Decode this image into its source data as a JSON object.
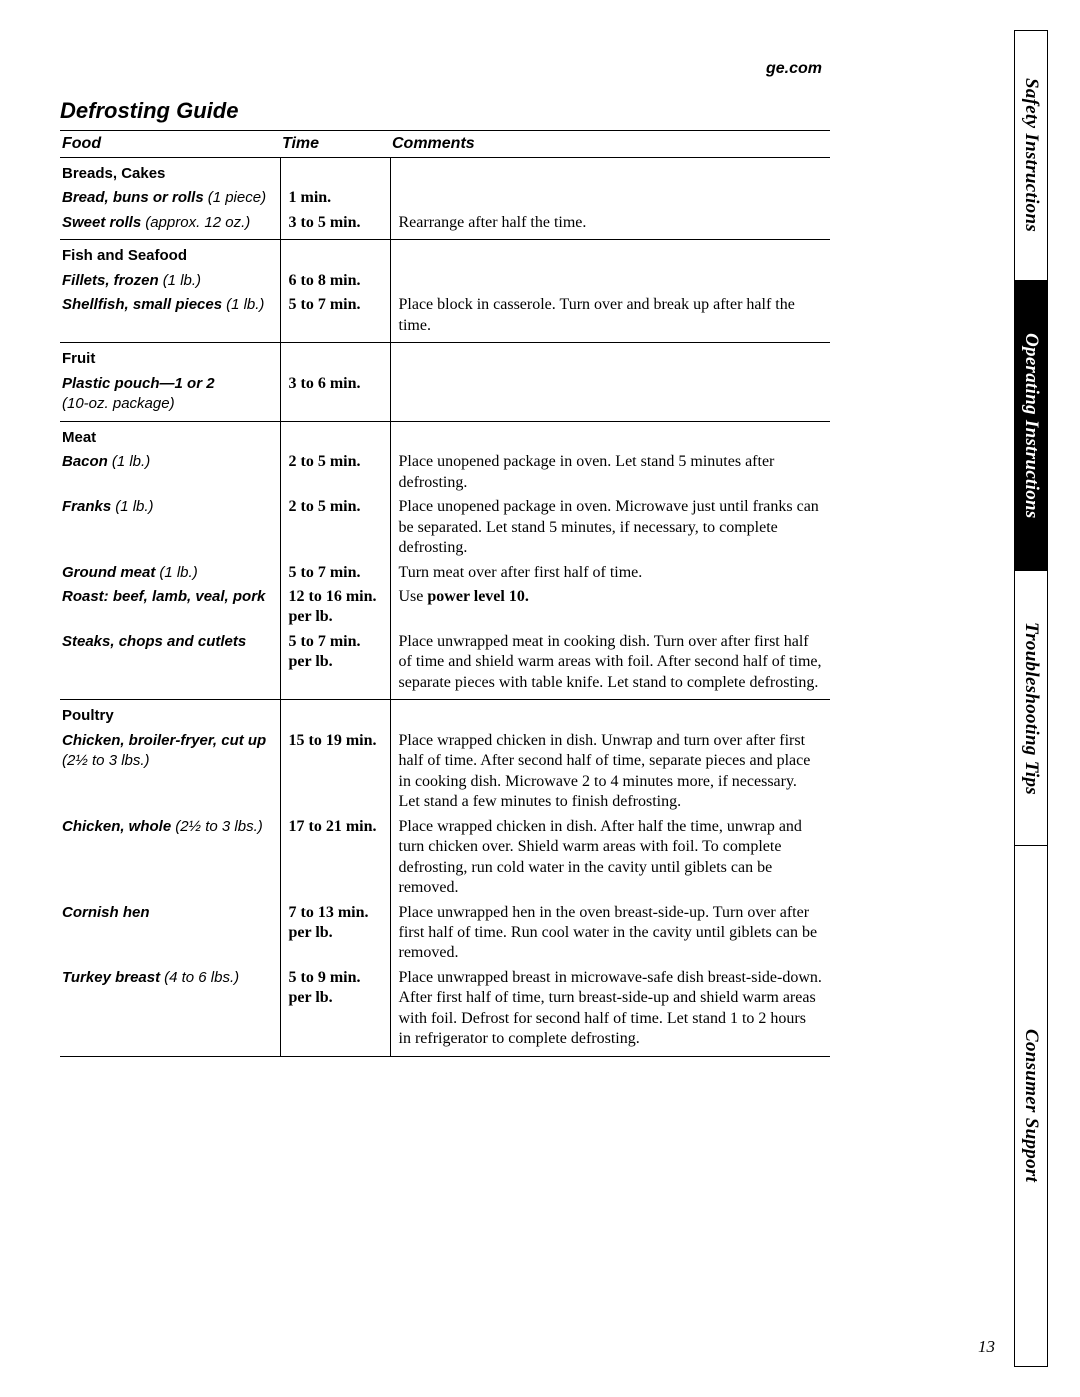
{
  "brand": "ge.com",
  "title": "Defrosting Guide",
  "page_number": "13",
  "headers": {
    "food": "Food",
    "time": "Time",
    "comments": "Comments"
  },
  "tabs": {
    "safety": "Safety Instructions",
    "operating": "Operating Instructions",
    "troubleshooting": "Troubleshooting Tips",
    "consumer": "Consumer Support"
  },
  "sections": {
    "breads": {
      "category": "Breads, Cakes",
      "rows": [
        {
          "label": "Bread, buns or rolls",
          "qty": "(1 piece)",
          "time": "1 min.",
          "comment": ""
        },
        {
          "label": "Sweet rolls",
          "qty": "(approx. 12 oz.)",
          "time": "3 to 5 min.",
          "comment": "Rearrange after half the time."
        }
      ]
    },
    "fish": {
      "category": "Fish and Seafood",
      "rows": [
        {
          "label": "Fillets, frozen",
          "qty": "(1 lb.)",
          "time": "6 to 8 min.",
          "comment": ""
        },
        {
          "label": "Shellfish, small pieces",
          "qty": "(1 lb.)",
          "time": "5 to 7 min.",
          "comment": "Place block in casserole. Turn over and break up after half the time."
        }
      ]
    },
    "fruit": {
      "category": "Fruit",
      "rows": [
        {
          "label": "Plastic pouch—1 or 2",
          "qty": "(10-oz. package)",
          "time": "3 to 6 min.",
          "comment": ""
        }
      ]
    },
    "meat": {
      "category": "Meat",
      "bacon": {
        "label": "Bacon",
        "qty": "(1 lb.)",
        "time": "2 to 5 min.",
        "comment": "Place unopened package in oven. Let stand 5 minutes after defrosting."
      },
      "franks": {
        "label": "Franks",
        "qty": "(1 lb.)",
        "time": "2 to 5 min.",
        "comment": "Place unopened package in oven. Microwave just until franks can be separated. Let stand 5 minutes, if necessary, to complete defrosting."
      },
      "ground": {
        "label": "Ground meat",
        "qty": "(1 lb.)",
        "time": "5 to 7 min.",
        "comment": "Turn meat over after first half of time."
      },
      "roast": {
        "label": "Roast: beef, lamb, veal, pork",
        "qty": "",
        "time": "12 to 16 min. per lb.",
        "comment_prefix": "Use ",
        "comment_bold": "power level 10."
      },
      "steaks": {
        "label": "Steaks, chops and cutlets",
        "qty": "",
        "time": "5 to 7 min. per lb.",
        "comment": "Place unwrapped meat in cooking dish. Turn over after first half of time and shield warm areas with foil. After second half of time, separate pieces with table knife. Let stand to complete defrosting."
      }
    },
    "poultry": {
      "category": "Poultry",
      "cutup": {
        "label": "Chicken, broiler-fryer, cut up",
        "qty": "(2½ to 3 lbs.)",
        "time": "15 to 19 min.",
        "comment": "Place wrapped chicken in dish. Unwrap and turn over after first half of time. After second half of time, separate pieces and place in cooking dish. Microwave 2 to 4 minutes more, if necessary. Let stand a few minutes to finish defrosting."
      },
      "whole": {
        "label": "Chicken, whole",
        "qty": "(2½ to 3 lbs.)",
        "time": "17 to 21 min.",
        "comment": "Place wrapped chicken in dish. After half the time, unwrap and turn chicken over. Shield warm areas with foil. To complete defrosting, run cold water in the cavity until giblets can be removed."
      },
      "cornish": {
        "label": "Cornish hen",
        "qty": "",
        "time": "7 to 13 min. per lb.",
        "comment": "Place unwrapped hen in the oven breast-side-up. Turn over after first half of time. Run cool water in the cavity until giblets can be removed."
      },
      "turkey": {
        "label": "Turkey breast",
        "qty": "(4 to 6 lbs.)",
        "time": "5 to 9 min. per lb.",
        "comment": "Place unwrapped breast in microwave-safe dish breast-side-down. After first half of time, turn breast-side-up and shield warm areas with foil. Defrost for second half of time. Let stand 1 to 2 hours in refrigerator to complete defrosting."
      }
    }
  }
}
